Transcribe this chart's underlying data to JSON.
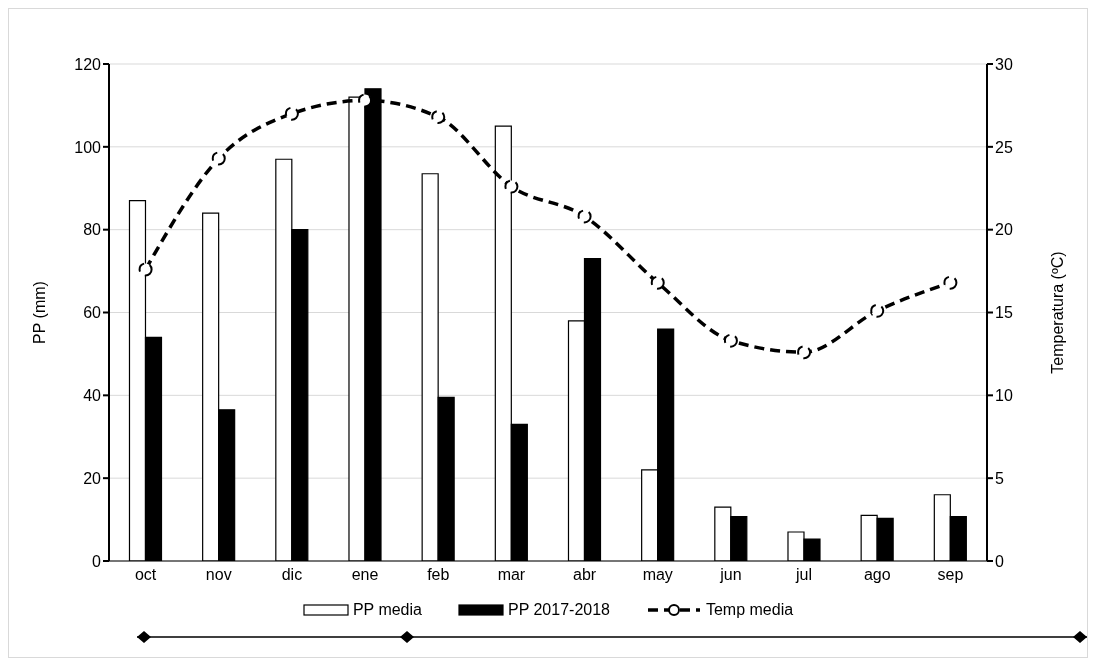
{
  "chart_data": {
    "type": "bar",
    "categories": [
      "oct",
      "nov",
      "dic",
      "ene",
      "feb",
      "mar",
      "abr",
      "may",
      "jun",
      "jul",
      "ago",
      "sep"
    ],
    "ylabel": "PP (mm)",
    "y2label": "Temperatura (ºC)",
    "ylim": [
      0,
      120
    ],
    "yticks": [
      0,
      20,
      40,
      60,
      80,
      100,
      120
    ],
    "y2lim": [
      0,
      30
    ],
    "y2ticks": [
      0,
      5,
      10,
      15,
      20,
      25,
      30
    ],
    "grid": "y",
    "legend": "bottom",
    "series": [
      {
        "name": "PP media",
        "color": "#ffffff",
        "values": [
          87,
          84,
          97,
          112,
          93.5,
          105,
          58,
          22,
          13,
          7,
          11,
          16
        ]
      },
      {
        "name": "PP 2017-2018",
        "color": "#000000",
        "values": [
          54,
          36.5,
          80,
          114,
          39.5,
          33,
          73,
          56,
          10.7,
          5.3,
          10.3,
          10.7
        ]
      },
      {
        "name": "Temp media",
        "type": "line",
        "axis": "y2",
        "color": "#000000",
        "marker": "circle",
        "line_style": "dashed",
        "values": [
          17.6,
          24.3,
          27,
          27.8,
          26.8,
          22.6,
          20.8,
          16.8,
          13.3,
          12.6,
          15.1,
          16.8
        ]
      }
    ]
  }
}
